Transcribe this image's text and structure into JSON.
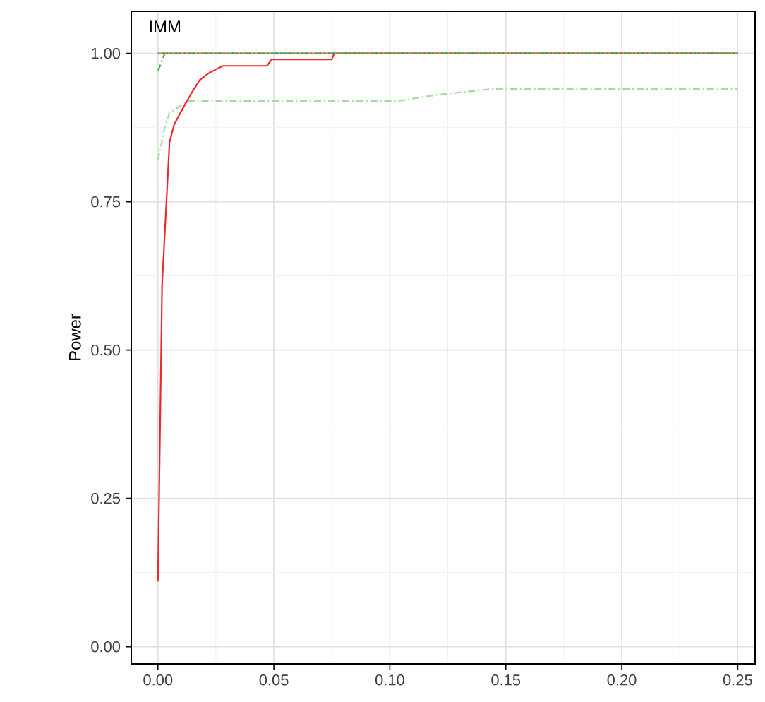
{
  "chart_data": {
    "type": "line",
    "title": "IMM",
    "ylabel": "Power",
    "xlim": [
      -0.0115,
      0.2575
    ],
    "ylim": [
      -0.029,
      1.071
    ],
    "xticks": [
      {
        "value": 0,
        "label": "0.00"
      },
      {
        "value": 0.05,
        "label": "0.05"
      },
      {
        "value": 0.1,
        "label": "0.10"
      },
      {
        "value": 0.15,
        "label": "0.15"
      },
      {
        "value": 0.2,
        "label": "0.20"
      },
      {
        "value": 0.25,
        "label": "0.25"
      }
    ],
    "yticks": [
      {
        "value": 0,
        "label": "0.00"
      },
      {
        "value": 0.25,
        "label": "0.25"
      },
      {
        "value": 0.5,
        "label": "0.50"
      },
      {
        "value": 0.75,
        "label": "0.75"
      },
      {
        "value": 1,
        "label": "1.00"
      }
    ],
    "grid": true,
    "series": [
      {
        "color": "#a6dba0",
        "line_style": "dashed",
        "x": [
          0,
          0.003,
          0.005,
          0.013,
          0.104,
          0.12,
          0.144,
          0.25
        ],
        "values": [
          0.82,
          0.876,
          0.9,
          0.92,
          0.92,
          0.93,
          0.94,
          0.94
        ]
      },
      {
        "color": "#f0282d",
        "line_style": "solid",
        "x": [
          0,
          0.0018,
          0.005,
          0.007,
          0.0097,
          0.014,
          0.018,
          0.022,
          0.028,
          0.047,
          0.049,
          0.075,
          0.076,
          0.25
        ],
        "values": [
          0.11,
          0.61,
          0.85,
          0.88,
          0.9,
          0.93,
          0.955,
          0.967,
          0.979,
          0.979,
          0.99,
          0.99,
          1.0,
          1.0
        ]
      },
      {
        "color": "#ff7f00",
        "line_style": "solid",
        "x": [
          0,
          0.25
        ],
        "values": [
          1.0,
          1.0
        ]
      },
      {
        "color": "#4daf4a",
        "line_style": "dashed",
        "x": [
          0,
          0.003,
          0.25
        ],
        "values": [
          0.97,
          1.0,
          1.0
        ]
      },
      {
        "color": "#377eb8",
        "line_style": "dotted",
        "x": [
          0,
          0.25
        ],
        "values": [
          1.0,
          1.0
        ]
      }
    ]
  }
}
